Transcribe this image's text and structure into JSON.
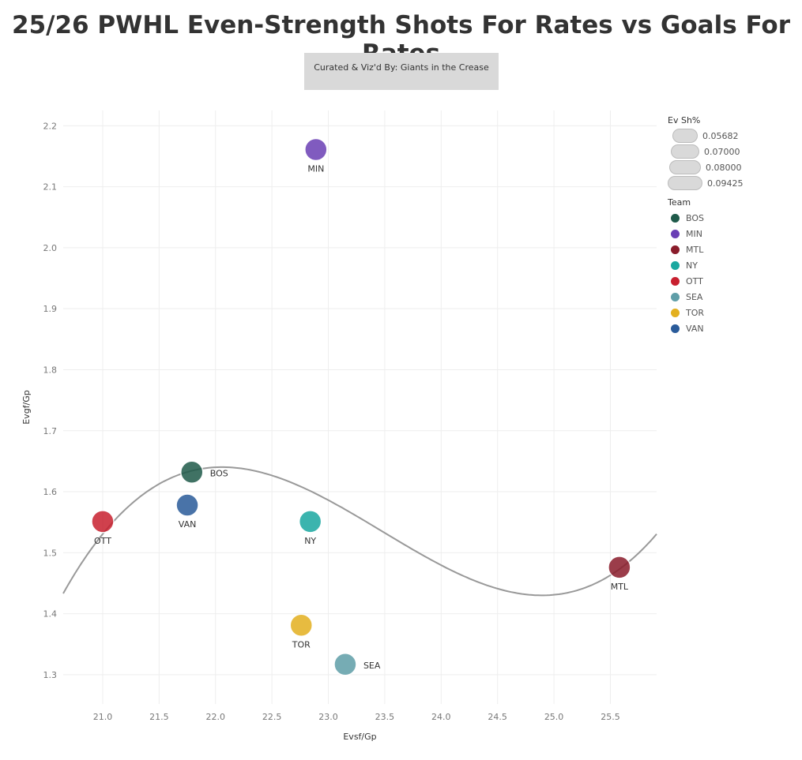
{
  "title": "25/26 PWHL Even-Strength Shots For Rates vs Goals For Rates",
  "credit": "Curated & Viz'd By: Giants in the Crease",
  "chart_data": {
    "type": "scatter",
    "xlabel": "Evsf/Gp",
    "ylabel": "Evgf/Gp",
    "xlim": [
      20.65,
      25.91
    ],
    "ylim": [
      1.252,
      2.225
    ],
    "xticks": [
      "21.0",
      "21.5",
      "22.0",
      "22.5",
      "23.0",
      "23.5",
      "24.0",
      "24.5",
      "25.0",
      "25.5"
    ],
    "yticks": [
      "1.3",
      "1.4",
      "1.5",
      "1.6",
      "1.7",
      "1.8",
      "1.9",
      "2.0",
      "2.1",
      "2.2"
    ],
    "grid": true,
    "trendline": "cubic",
    "points": [
      {
        "team": "MIN",
        "x": 22.89,
        "y": 2.161,
        "color": "#6a3fb5"
      },
      {
        "team": "BOS",
        "x": 21.79,
        "y": 1.632,
        "color": "#1f5a4a"
      },
      {
        "team": "VAN",
        "x": 21.75,
        "y": 1.578,
        "color": "#2a5b9a"
      },
      {
        "team": "OTT",
        "x": 21.0,
        "y": 1.551,
        "color": "#c8202f"
      },
      {
        "team": "NY",
        "x": 22.84,
        "y": 1.551,
        "color": "#1aa8a0"
      },
      {
        "team": "MTL",
        "x": 25.58,
        "y": 1.476,
        "color": "#8a1c2b"
      },
      {
        "team": "TOR",
        "x": 22.76,
        "y": 1.381,
        "color": "#e3b01f"
      },
      {
        "team": "SEA",
        "x": 23.15,
        "y": 1.317,
        "color": "#5f9ea8"
      }
    ],
    "legend_size": {
      "title": "Ev Sh%",
      "values": [
        "0.05682",
        "0.07000",
        "0.08000",
        "0.09425"
      ]
    },
    "legend_team": {
      "title": "Team",
      "items": [
        "BOS",
        "MIN",
        "MTL",
        "NY",
        "OTT",
        "SEA",
        "TOR",
        "VAN"
      ]
    },
    "legend_placement": "right"
  }
}
